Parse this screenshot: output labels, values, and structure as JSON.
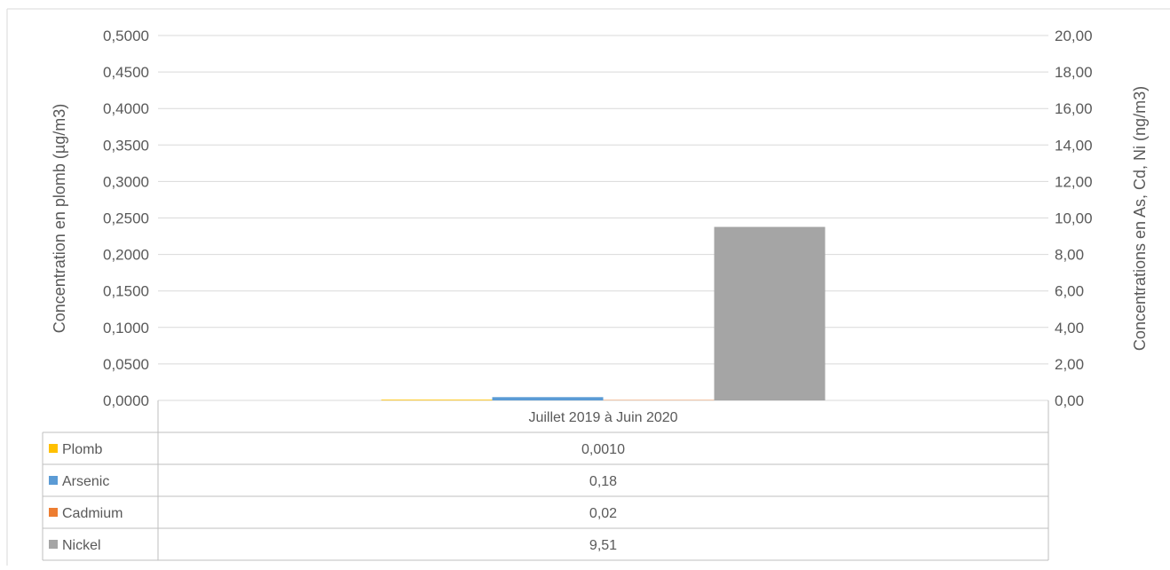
{
  "chart_data": {
    "type": "bar",
    "categories": [
      "Juillet 2019 à Juin 2020"
    ],
    "series": [
      {
        "name": "Plomb",
        "axis": "left",
        "values": [
          0.001
        ],
        "label": "0,0010",
        "color": "#ffc000"
      },
      {
        "name": "Arsenic",
        "axis": "right",
        "values": [
          0.18
        ],
        "label": "0,18",
        "color": "#5b9bd5"
      },
      {
        "name": "Cadmium",
        "axis": "right",
        "values": [
          0.02
        ],
        "label": "0,02",
        "color": "#ed7d31"
      },
      {
        "name": "Nickel",
        "axis": "right",
        "values": [
          9.51
        ],
        "label": "9,51",
        "color": "#a5a5a5"
      }
    ],
    "y_left": {
      "label": "Concentration en plomb (µg/m3)",
      "ylim": [
        0,
        0.5
      ],
      "ticks": [
        "0,0000",
        "0,0500",
        "0,1000",
        "0,1500",
        "0,2000",
        "0,2500",
        "0,3000",
        "0,3500",
        "0,4000",
        "0,4500",
        "0,5000"
      ]
    },
    "y_right": {
      "label": "Concentrations en As, Cd, Ni (ng/m3)",
      "ylim": [
        0,
        20
      ],
      "ticks": [
        "0,00",
        "2,00",
        "4,00",
        "6,00",
        "8,00",
        "10,00",
        "12,00",
        "14,00",
        "16,00",
        "18,00",
        "20,00"
      ]
    },
    "grid": true,
    "legend": "data-table-below"
  }
}
